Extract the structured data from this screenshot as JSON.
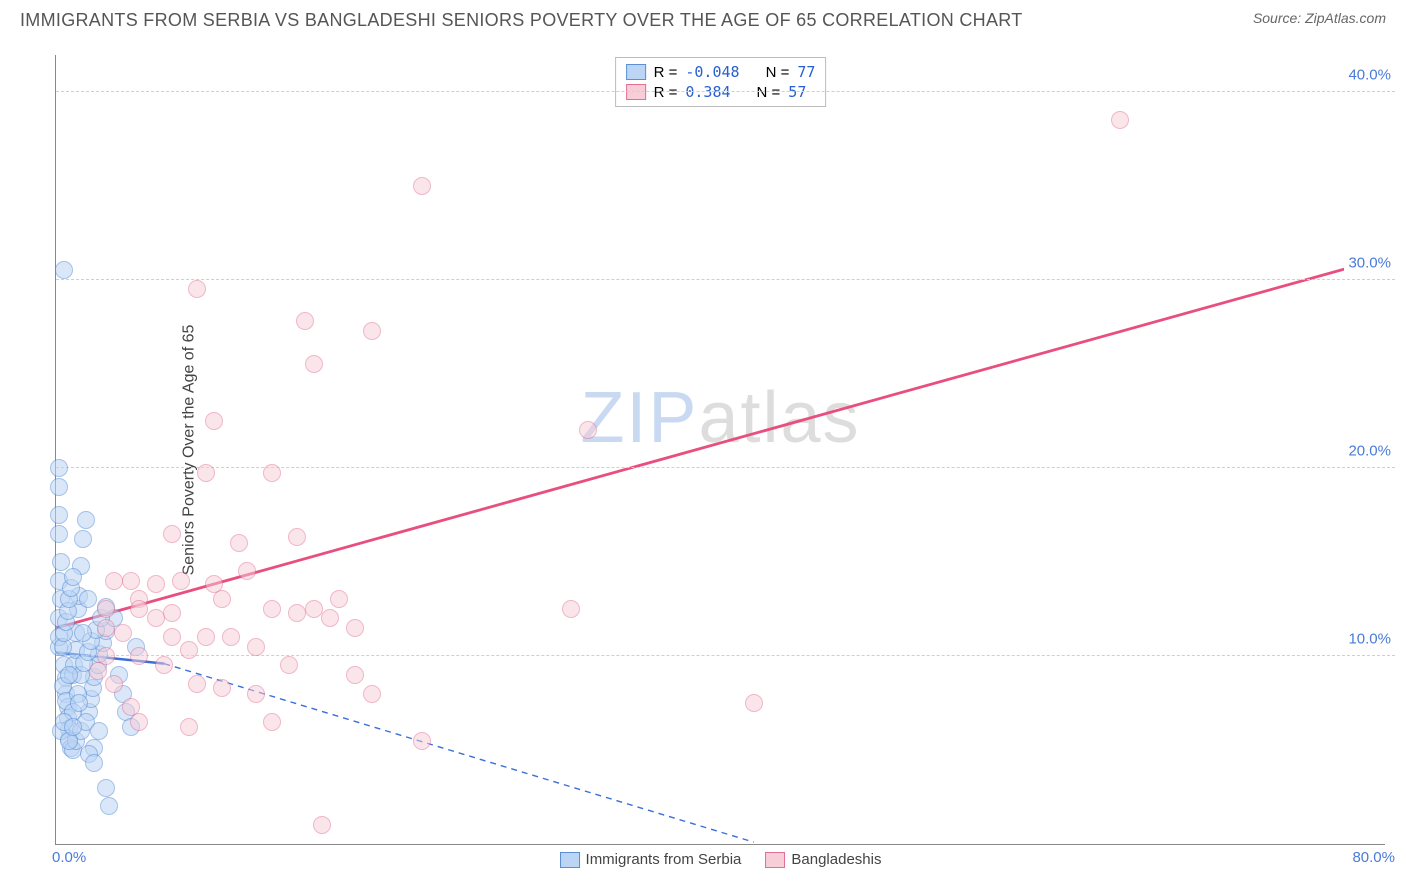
{
  "header": {
    "title": "IMMIGRANTS FROM SERBIA VS BANGLADESHI SENIORS POVERTY OVER THE AGE OF 65 CORRELATION CHART",
    "source_prefix": "Source: ",
    "source": "ZipAtlas.com"
  },
  "chart": {
    "type": "scatter",
    "ylabel": "Seniors Poverty Over the Age of 65",
    "xlim": [
      0,
      80
    ],
    "ylim": [
      0,
      42
    ],
    "yticks": [
      10,
      20,
      30,
      40
    ],
    "ytick_labels": [
      "10.0%",
      "20.0%",
      "30.0%",
      "40.0%"
    ],
    "xtick_left": "0.0%",
    "xtick_right": "80.0%",
    "grid_color": "#cfcfcf",
    "axis_color": "#888888",
    "background": "#ffffff",
    "point_radius": 9,
    "point_stroke_width": 1.2,
    "series": [
      {
        "name": "Immigrants from Serbia",
        "fill": "#bcd5f5",
        "stroke": "#5a8fd6",
        "fill_opacity": 0.55,
        "R_label": "R =",
        "R": "-0.048",
        "N_label": "N =",
        "N": "77",
        "regression": {
          "x1": 0,
          "y1": 10.2,
          "x2": 6.5,
          "y2": 9.6,
          "dash_x2": 42,
          "dash_y2": 0.1,
          "color": "#3a6fd8",
          "width": 2.5
        },
        "points": [
          [
            0.2,
            10.5
          ],
          [
            0.2,
            11
          ],
          [
            0.2,
            12
          ],
          [
            0.3,
            13
          ],
          [
            0.2,
            14
          ],
          [
            0.3,
            15
          ],
          [
            0.2,
            16.5
          ],
          [
            0.2,
            17.5
          ],
          [
            0.2,
            19
          ],
          [
            0.2,
            20
          ],
          [
            0.5,
            30.5
          ],
          [
            0.5,
            9.5
          ],
          [
            0.6,
            8.8
          ],
          [
            0.6,
            8
          ],
          [
            0.7,
            7.3
          ],
          [
            0.7,
            6.7
          ],
          [
            0.8,
            6.1
          ],
          [
            0.8,
            5.6
          ],
          [
            0.9,
            5.1
          ],
          [
            2.3,
            5.1
          ],
          [
            1.0,
            9
          ],
          [
            1.1,
            9.5
          ],
          [
            1.2,
            10.3
          ],
          [
            1.2,
            11.2
          ],
          [
            1.3,
            12.5
          ],
          [
            1.4,
            13.2
          ],
          [
            1.5,
            14.8
          ],
          [
            1.6,
            16.2
          ],
          [
            1.8,
            17.2
          ],
          [
            2.0,
            7.0
          ],
          [
            2.1,
            7.7
          ],
          [
            2.2,
            8.3
          ],
          [
            2.3,
            8.9
          ],
          [
            2.5,
            9.5
          ],
          [
            2.6,
            10.1
          ],
          [
            2.8,
            10.7
          ],
          [
            3.0,
            11.3
          ],
          [
            1.0,
            5.0
          ],
          [
            1.2,
            5.5
          ],
          [
            1.5,
            6.0
          ],
          [
            1.8,
            6.5
          ],
          [
            2.0,
            4.8
          ],
          [
            2.3,
            4.3
          ],
          [
            3.0,
            3.0
          ],
          [
            3.2,
            2.0
          ],
          [
            3.5,
            12
          ],
          [
            3.8,
            9
          ],
          [
            4.0,
            8
          ],
          [
            4.2,
            7
          ],
          [
            4.5,
            6.2
          ],
          [
            4.8,
            10.5
          ],
          [
            0.4,
            10.5
          ],
          [
            0.5,
            11.2
          ],
          [
            0.6,
            11.8
          ],
          [
            0.7,
            12.4
          ],
          [
            0.8,
            13.0
          ],
          [
            0.9,
            13.6
          ],
          [
            1.0,
            14.2
          ],
          [
            1.5,
            9.0
          ],
          [
            1.7,
            9.6
          ],
          [
            1.9,
            10.2
          ],
          [
            2.1,
            10.8
          ],
          [
            2.4,
            11.4
          ],
          [
            2.7,
            12.0
          ],
          [
            3.0,
            12.6
          ],
          [
            0.4,
            8.4
          ],
          [
            0.6,
            7.6
          ],
          [
            0.8,
            9.0
          ],
          [
            1.0,
            7.0
          ],
          [
            1.3,
            8.0
          ],
          [
            1.6,
            11.2
          ],
          [
            1.9,
            13.0
          ],
          [
            0.3,
            6.0
          ],
          [
            0.5,
            6.5
          ],
          [
            0.8,
            5.5
          ],
          [
            1.0,
            6.2
          ],
          [
            1.4,
            7.5
          ],
          [
            2.6,
            6.0
          ]
        ]
      },
      {
        "name": "Bangladeshis",
        "fill": "#f7cdd8",
        "stroke": "#e36f93",
        "fill_opacity": 0.5,
        "R_label": "R =",
        "R": " 0.384",
        "N_label": "N =",
        "N": "57",
        "regression": {
          "x1": 0,
          "y1": 11.5,
          "x2": 80,
          "y2": 31.2,
          "color": "#e84f7f",
          "width": 2.8
        },
        "points": [
          [
            64,
            38.5
          ],
          [
            22,
            35
          ],
          [
            15,
            27.8
          ],
          [
            19,
            27.3
          ],
          [
            15.5,
            25.5
          ],
          [
            8.5,
            29.5
          ],
          [
            9.5,
            22.5
          ],
          [
            9,
            19.7
          ],
          [
            13,
            19.7
          ],
          [
            7,
            16.5
          ],
          [
            11,
            16
          ],
          [
            14.5,
            16.3
          ],
          [
            32,
            22
          ],
          [
            3.5,
            14
          ],
          [
            4.5,
            14
          ],
          [
            6,
            13.8
          ],
          [
            7.5,
            14
          ],
          [
            9.5,
            13.8
          ],
          [
            5,
            13
          ],
          [
            3,
            12.5
          ],
          [
            5,
            12.5
          ],
          [
            7,
            12.3
          ],
          [
            13,
            12.5
          ],
          [
            14.5,
            12.3
          ],
          [
            15.5,
            12.5
          ],
          [
            16.5,
            12
          ],
          [
            18,
            11.5
          ],
          [
            31,
            12.5
          ],
          [
            4,
            11.2
          ],
          [
            7,
            11
          ],
          [
            9,
            11
          ],
          [
            10.5,
            11
          ],
          [
            12,
            10.5
          ],
          [
            14,
            9.5
          ],
          [
            18,
            9.0
          ],
          [
            19,
            8.0
          ],
          [
            3,
            10
          ],
          [
            5,
            10
          ],
          [
            6.5,
            9.5
          ],
          [
            8.5,
            8.5
          ],
          [
            10,
            8.3
          ],
          [
            12,
            8
          ],
          [
            3.5,
            8.5
          ],
          [
            4.5,
            7.3
          ],
          [
            5,
            6.5
          ],
          [
            8,
            6.2
          ],
          [
            13,
            6.5
          ],
          [
            22,
            5.5
          ],
          [
            42,
            7.5
          ],
          [
            2.5,
            9.2
          ],
          [
            3,
            11.5
          ],
          [
            6,
            12
          ],
          [
            8,
            10.3
          ],
          [
            10,
            13
          ],
          [
            16,
            1.0
          ],
          [
            11.5,
            14.5
          ],
          [
            17,
            13
          ]
        ]
      }
    ]
  },
  "watermark": {
    "zip": "ZIP",
    "atlas": "atlas"
  }
}
